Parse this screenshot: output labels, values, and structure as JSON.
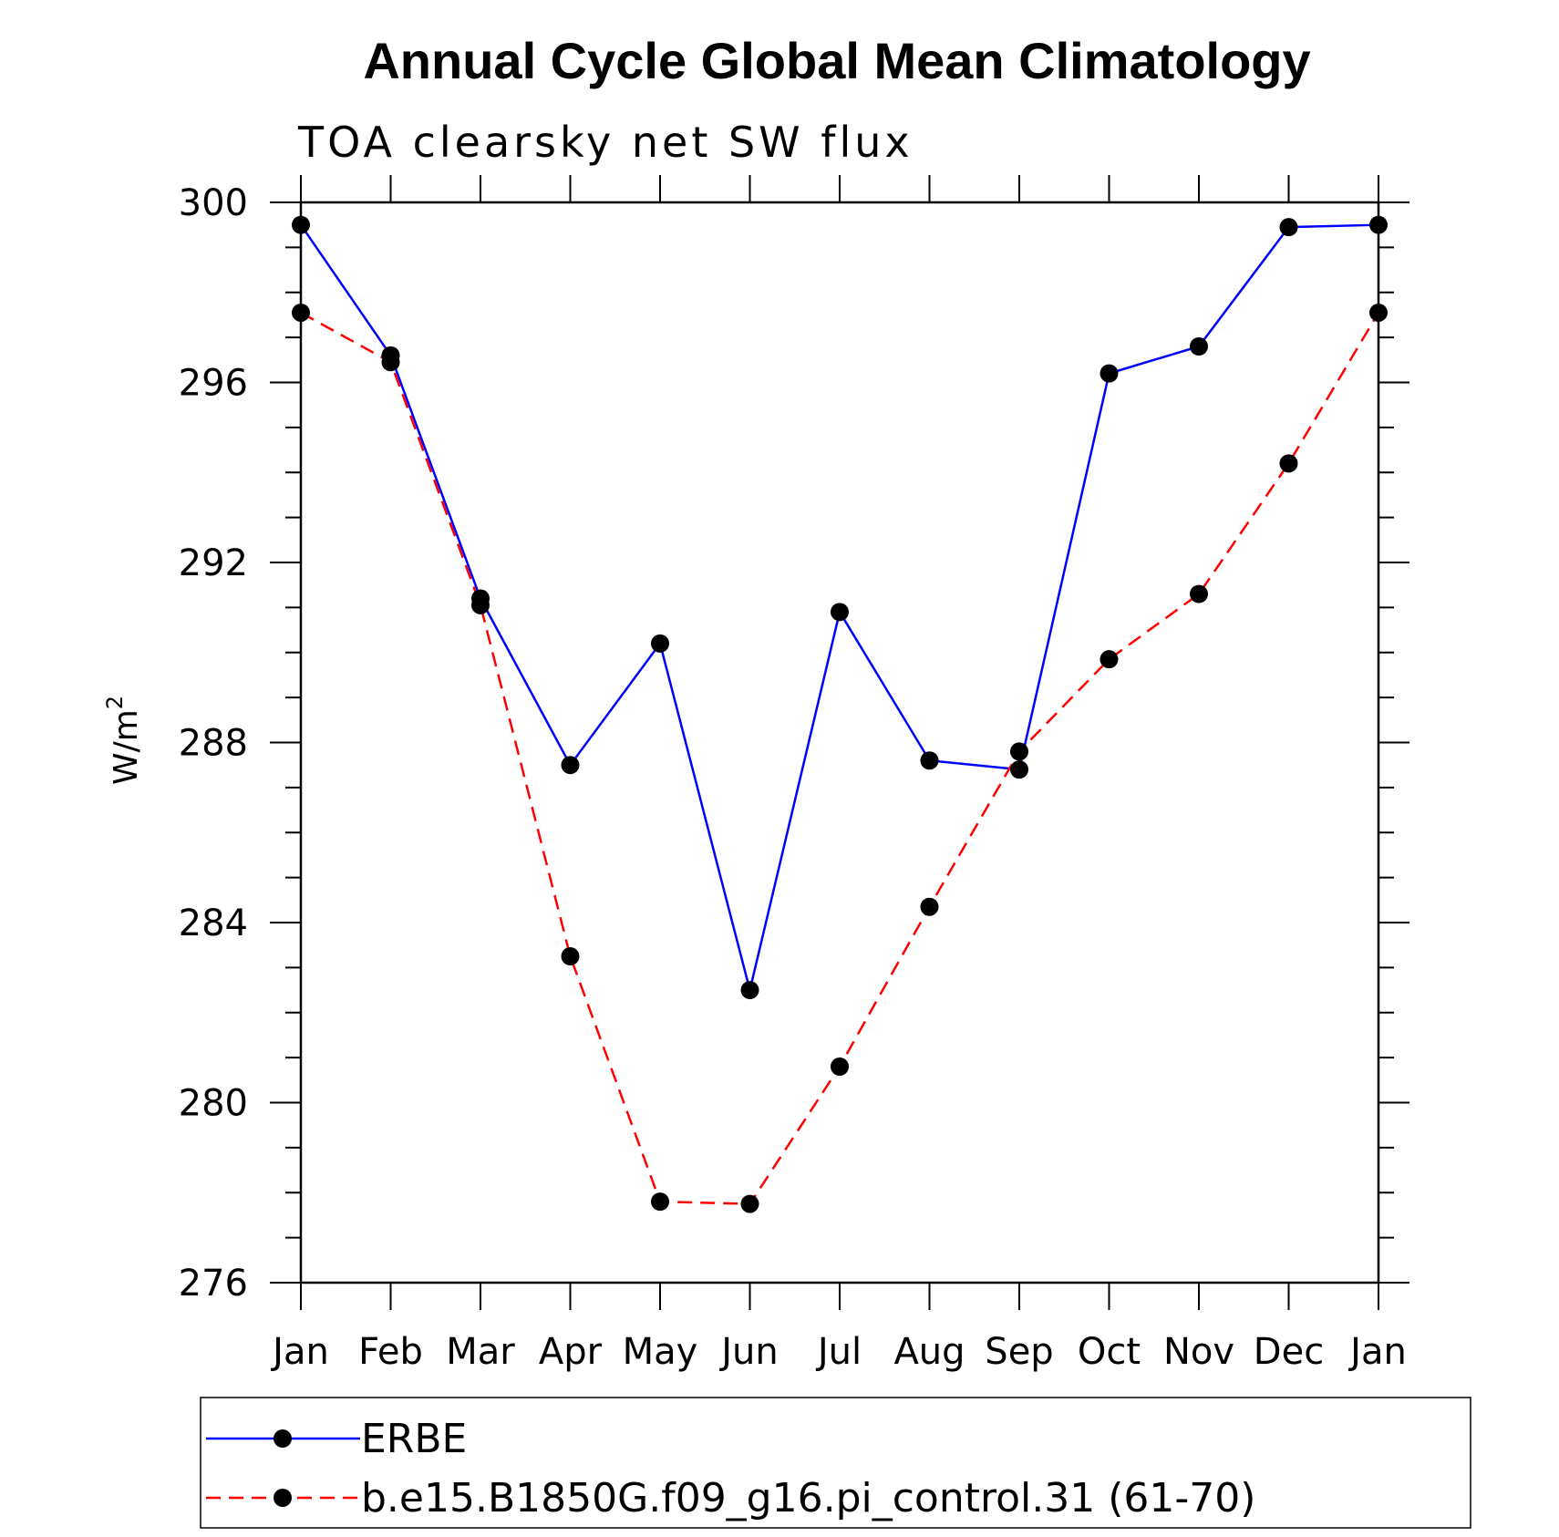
{
  "chart_data": {
    "type": "line",
    "title": "Annual Cycle Global Mean Climatology",
    "subtitle": "TOA clearsky net SW flux",
    "ylabel": "W/m",
    "ylabel_sup": "2",
    "xlabel": "",
    "categories": [
      "Jan",
      "Feb",
      "Mar",
      "Apr",
      "May",
      "Jun",
      "Jul",
      "Aug",
      "Sep",
      "Oct",
      "Nov",
      "Dec",
      "Jan"
    ],
    "ylim": [
      276,
      300
    ],
    "yticks": [
      276,
      280,
      284,
      288,
      292,
      296,
      300
    ],
    "grid": false,
    "legend_position": "bottom",
    "series": [
      {
        "name": "ERBE",
        "color": "#0000ff",
        "dash": "solid",
        "values": [
          299.5,
          296.6,
          291.2,
          287.5,
          290.2,
          282.5,
          290.9,
          287.6,
          287.4,
          296.2,
          296.8,
          299.45,
          299.5
        ]
      },
      {
        "name": "b.e15.B1850G.f09_g16.pi_control.31 (61-70)",
        "color": "#ff0000",
        "dash": "dashed",
        "values": [
          297.55,
          296.45,
          291.05,
          283.25,
          277.8,
          277.75,
          280.8,
          284.35,
          287.8,
          289.85,
          291.3,
          294.2,
          297.55
        ]
      }
    ]
  }
}
